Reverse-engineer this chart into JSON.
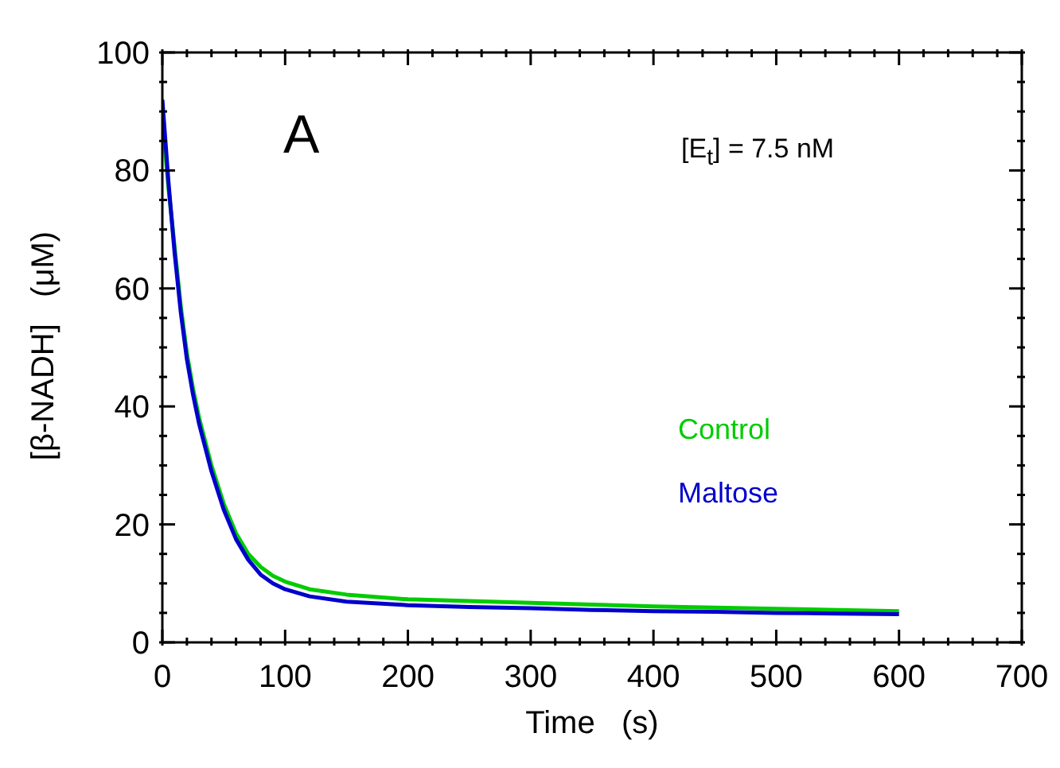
{
  "chart_data": {
    "type": "line",
    "xlabel": "Time   (s)",
    "ylabel": "[β-NADH]   (μM)",
    "annotations": [
      "A",
      "[E$_{t}$] = 7.5 nM"
    ],
    "xlim": [
      0,
      700
    ],
    "ylim": [
      0,
      100
    ],
    "xticks": [
      0,
      {
        "value": 20,
        "label": null
      },
      {
        "value": 40,
        "label": null
      },
      {
        "value": 60,
        "label": null
      },
      {
        "value": 80,
        "label": null
      },
      100,
      {
        "value": 120,
        "label": null
      },
      {
        "value": 140,
        "label": null
      },
      {
        "value": 160,
        "label": null
      },
      {
        "value": 180,
        "label": null
      },
      200,
      {
        "value": 220,
        "label": null
      },
      {
        "value": 240,
        "label": null
      },
      {
        "value": 260,
        "label": null
      },
      {
        "value": 280,
        "label": null
      },
      300,
      {
        "value": 320,
        "label": null
      },
      {
        "value": 340,
        "label": null
      },
      {
        "value": 360,
        "label": null
      },
      {
        "value": 380,
        "label": null
      },
      400,
      {
        "value": 420,
        "label": null
      },
      {
        "value": 440,
        "label": null
      },
      {
        "value": 460,
        "label": null
      },
      {
        "value": 480,
        "label": null
      },
      500,
      {
        "value": 520,
        "label": null
      },
      {
        "value": 540,
        "label": null
      },
      {
        "value": 560,
        "label": null
      },
      {
        "value": 580,
        "label": null
      },
      600,
      {
        "value": 620,
        "label": null
      },
      {
        "value": 640,
        "label": null
      },
      {
        "value": 660,
        "label": null
      },
      {
        "value": 680,
        "label": null
      },
      700
    ],
    "yticks": [
      0,
      {
        "value": 5,
        "label": null
      },
      {
        "value": 10,
        "label": null
      },
      {
        "value": 15,
        "label": null
      },
      20,
      {
        "value": 25,
        "label": null
      },
      {
        "value": 30,
        "label": null
      },
      {
        "value": 35,
        "label": null
      },
      40,
      {
        "value": 45,
        "label": null
      },
      {
        "value": 50,
        "label": null
      },
      {
        "value": 55,
        "label": null
      },
      60,
      {
        "value": 65,
        "label": null
      },
      {
        "value": 70,
        "label": null
      },
      {
        "value": 75,
        "label": null
      },
      80,
      {
        "value": 85,
        "label": null
      },
      {
        "value": 90,
        "label": null
      },
      {
        "value": 95,
        "label": null
      },
      100
    ],
    "x": [
      0,
      5,
      10,
      15,
      20,
      25,
      30,
      40,
      50,
      60,
      70,
      80,
      90,
      100,
      120,
      150,
      200,
      250,
      300,
      350,
      400,
      450,
      500,
      550,
      600
    ],
    "grid": false,
    "legend": "right",
    "marker": "none",
    "line_style": "solid",
    "series": [
      {
        "name": "Control",
        "color": "#00cc00",
        "values": [
          89,
          77,
          67,
          57,
          49,
          43,
          38,
          30,
          23.5,
          18.5,
          15,
          12.8,
          11.3,
          10.3,
          9,
          8.1,
          7.3,
          7,
          6.7,
          6.4,
          6.1,
          5.9,
          5.7,
          5.5,
          5.3
        ]
      },
      {
        "name": "Maltose",
        "color": "#0000cc",
        "values": [
          92,
          78,
          66,
          56,
          48,
          42,
          37,
          29,
          22.5,
          17.5,
          14,
          11.5,
          10,
          9,
          7.8,
          6.9,
          6.3,
          6,
          5.8,
          5.5,
          5.3,
          5.2,
          5,
          4.9,
          4.8
        ]
      }
    ]
  }
}
